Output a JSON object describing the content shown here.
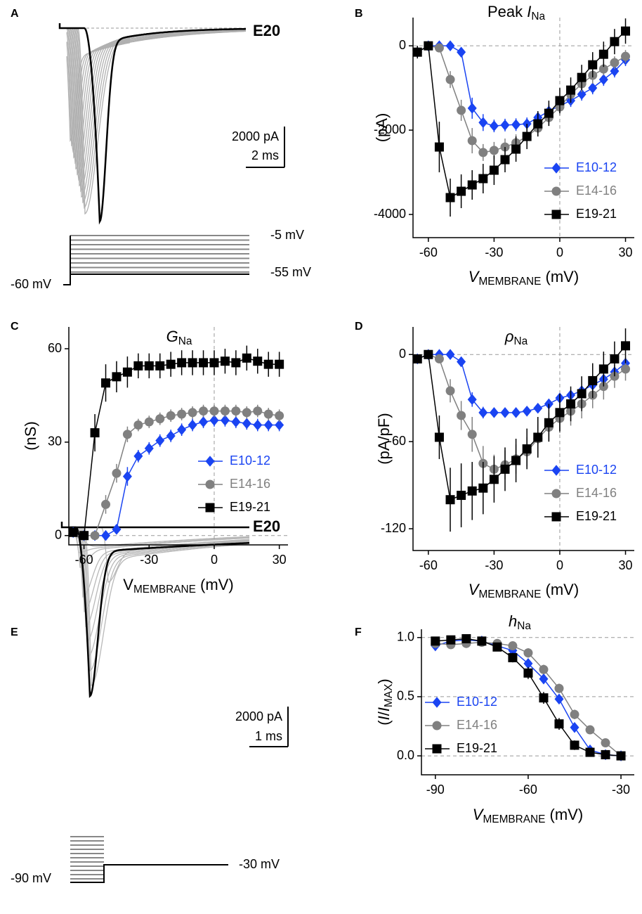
{
  "traces": [
    {
      "panel": "A",
      "label": "E20",
      "scale": [
        "2000 pA",
        "2 ms"
      ],
      "steps": [
        "-5 mV",
        "-55 mV",
        "-60 mV"
      ]
    },
    {
      "panel": "E",
      "label": "E20",
      "scale": [
        "2000 pA",
        "1 ms"
      ],
      "steps": [
        "-30 mV",
        "-90 mV"
      ]
    }
  ],
  "chart_data": [
    {
      "panel": "B",
      "type": "line",
      "title": [
        {
          "text": "Peak "
        },
        {
          "text": "I",
          "style": "italic"
        },
        {
          "text": "Na",
          "style": "sub"
        }
      ],
      "xlabel": [
        {
          "text": "V",
          "style": "italic"
        },
        {
          "text": "MEMBRANE",
          "style": "sub"
        },
        {
          "text": " (mV)"
        }
      ],
      "ylabel": [
        {
          "text": "(pA)"
        }
      ],
      "x": [
        -65,
        -60,
        -55,
        -50,
        -45,
        -40,
        -35,
        -30,
        -25,
        -20,
        -15,
        -10,
        -5,
        0,
        5,
        10,
        15,
        20,
        25,
        30
      ],
      "xlim": [
        -67,
        34
      ],
      "xticks": [
        -60,
        -30,
        0,
        30
      ],
      "ylim": [
        -4550,
        670
      ],
      "yticks": [
        0,
        -2000,
        -4000
      ],
      "zero_lines": true,
      "legend": "lower right",
      "series": [
        {
          "name": "E10-12",
          "color": "#1a44f2",
          "marker": "diamond",
          "values": [
            -150,
            0,
            0,
            0,
            -150,
            -1480,
            -1820,
            -1900,
            -1880,
            -1870,
            -1850,
            -1700,
            -1550,
            -1420,
            -1300,
            -1150,
            -1000,
            -800,
            -600,
            -330
          ],
          "errors": [
            100,
            50,
            50,
            50,
            80,
            250,
            200,
            150,
            150,
            150,
            150,
            150,
            150,
            150,
            150,
            150,
            150,
            150,
            150,
            150
          ]
        },
        {
          "name": "E14-16",
          "color": "#808080",
          "marker": "circle",
          "values": [
            -150,
            0,
            -50,
            -800,
            -1530,
            -2250,
            -2530,
            -2480,
            -2400,
            -2300,
            -2150,
            -1950,
            -1700,
            -1450,
            -1150,
            -900,
            -700,
            -550,
            -400,
            -250
          ],
          "errors": [
            100,
            50,
            80,
            200,
            250,
            300,
            200,
            200,
            200,
            200,
            200,
            200,
            200,
            200,
            200,
            200,
            200,
            150,
            150,
            150
          ]
        },
        {
          "name": "E19-21",
          "color": "#000000",
          "marker": "square",
          "values": [
            -150,
            0,
            -2400,
            -3600,
            -3450,
            -3300,
            -3150,
            -2950,
            -2700,
            -2450,
            -2150,
            -1850,
            -1600,
            -1300,
            -1050,
            -750,
            -450,
            -200,
            100,
            350
          ],
          "errors": [
            150,
            50,
            600,
            450,
            400,
            350,
            350,
            350,
            300,
            300,
            300,
            300,
            300,
            300,
            300,
            300,
            300,
            300,
            300,
            300
          ]
        }
      ]
    },
    {
      "panel": "C",
      "type": "line",
      "title": [
        {
          "text": "G",
          "style": "italic"
        },
        {
          "text": "Na",
          "style": "sub"
        }
      ],
      "xlabel": [
        {
          "text": "V"
        },
        {
          "text": "MEMBRANE",
          "style": "sub"
        },
        {
          "text": " (mV)"
        }
      ],
      "ylabel": [
        {
          "text": "(nS)"
        }
      ],
      "x": [
        -65,
        -60,
        -55,
        -50,
        -45,
        -40,
        -35,
        -30,
        -25,
        -20,
        -15,
        -10,
        -5,
        0,
        5,
        10,
        15,
        20,
        25,
        30
      ],
      "xlim": [
        -67,
        34
      ],
      "xticks": [
        -60,
        -30,
        0,
        30
      ],
      "ylim": [
        -3,
        67
      ],
      "yticks": [
        0,
        30,
        60
      ],
      "zero_lines": true,
      "legend": "lower right",
      "series": [
        {
          "name": "E10-12",
          "color": "#1a44f2",
          "marker": "diamond",
          "values": [
            1,
            0,
            0,
            0,
            2,
            19,
            25.5,
            28,
            30.5,
            32,
            34,
            35.5,
            36.5,
            37,
            37,
            36.5,
            36,
            35.5,
            35.5,
            35.5
          ],
          "errors": [
            1,
            0.5,
            0.5,
            0.5,
            1,
            3,
            2,
            2,
            2,
            2,
            2,
            2,
            2,
            2,
            2,
            2,
            2,
            2,
            2,
            2
          ]
        },
        {
          "name": "E14-16",
          "color": "#808080",
          "marker": "circle",
          "values": [
            1,
            0,
            0,
            10,
            20,
            32.5,
            35.5,
            36.5,
            37.5,
            38.5,
            39,
            39.5,
            40,
            40,
            40,
            40,
            39.5,
            40,
            39,
            38.5
          ],
          "errors": [
            1,
            0.5,
            0.5,
            3,
            3,
            2.5,
            2,
            2,
            2,
            2,
            2,
            2,
            2,
            2,
            2,
            2,
            2,
            2,
            2,
            2
          ]
        },
        {
          "name": "E19-21",
          "color": "#000000",
          "marker": "square",
          "values": [
            1,
            0,
            33,
            49,
            51,
            52.5,
            54.5,
            54.5,
            54.5,
            55,
            55.5,
            55.5,
            55.5,
            55.5,
            56,
            55.5,
            57,
            56,
            55,
            55
          ],
          "errors": [
            1,
            0.5,
            6,
            6,
            5,
            5,
            4,
            4,
            4,
            4,
            4,
            4,
            4,
            4,
            4,
            4,
            4,
            4,
            4,
            4
          ]
        }
      ]
    },
    {
      "panel": "D",
      "type": "line",
      "title": [
        {
          "text": "ρ",
          "style": "italic"
        },
        {
          "text": "Na",
          "style": "sub"
        }
      ],
      "xlabel": [
        {
          "text": "V",
          "style": "italic"
        },
        {
          "text": "MEMBRANE",
          "style": "sub"
        },
        {
          "text": " (mV)"
        }
      ],
      "ylabel": [
        {
          "text": "(pA/pF)"
        }
      ],
      "x": [
        -65,
        -60,
        -55,
        -50,
        -45,
        -40,
        -35,
        -30,
        -25,
        -20,
        -15,
        -10,
        -5,
        0,
        5,
        10,
        15,
        20,
        25,
        30
      ],
      "xlim": [
        -67,
        34
      ],
      "xticks": [
        -60,
        -30,
        0,
        30
      ],
      "ylim": [
        -135,
        19
      ],
      "yticks": [
        0,
        -60,
        -120
      ],
      "zero_lines": true,
      "legend": "lower right",
      "series": [
        {
          "name": "E10-12",
          "color": "#1a44f2",
          "marker": "diamond",
          "values": [
            -3,
            0,
            0,
            0,
            -5,
            -31,
            -40,
            -40,
            -40,
            -40,
            -39,
            -37,
            -34,
            -30,
            -28,
            -25,
            -21,
            -17,
            -12,
            -6
          ],
          "errors": [
            2,
            1,
            1,
            1,
            2,
            5,
            4,
            3,
            3,
            3,
            3,
            3,
            3,
            3,
            3,
            3,
            3,
            3,
            3,
            3
          ]
        },
        {
          "name": "E14-16",
          "color": "#808080",
          "marker": "circle",
          "values": [
            -3,
            0,
            -3,
            -25,
            -42,
            -55,
            -75,
            -79,
            -76,
            -72,
            -67,
            -58,
            -50,
            -44,
            -39,
            -34,
            -28,
            -22,
            -15,
            -10
          ],
          "errors": [
            2,
            1,
            2,
            8,
            10,
            12,
            12,
            10,
            10,
            10,
            10,
            10,
            10,
            10,
            10,
            10,
            9,
            9,
            8,
            8
          ]
        },
        {
          "name": "E19-21",
          "color": "#000000",
          "marker": "square",
          "values": [
            -3,
            0,
            -57,
            -100,
            -97,
            -94,
            -92,
            -86,
            -79,
            -73,
            -65,
            -57,
            -47,
            -40,
            -34,
            -27,
            -18,
            -10,
            -3,
            6
          ],
          "errors": [
            2,
            1,
            15,
            22,
            22,
            20,
            18,
            16,
            15,
            15,
            14,
            14,
            13,
            13,
            12,
            12,
            12,
            12,
            12,
            12
          ]
        }
      ]
    },
    {
      "panel": "F",
      "type": "line",
      "title": [
        {
          "text": "h",
          "style": "italic"
        },
        {
          "text": "Na",
          "style": "sub"
        }
      ],
      "xlabel": [
        {
          "text": "V",
          "style": "italic"
        },
        {
          "text": "MEMBRANE",
          "style": "sub"
        },
        {
          "text": " (mV)"
        }
      ],
      "ylabel": [
        {
          "text": "("
        },
        {
          "text": "I",
          "style": "italic"
        },
        {
          "text": "/"
        },
        {
          "text": "I",
          "style": "italic"
        },
        {
          "text": "MAX",
          "style": "sub"
        },
        {
          "text": ")"
        }
      ],
      "x": [
        -90,
        -85,
        -80,
        -75,
        -70,
        -65,
        -60,
        -55,
        -50,
        -45,
        -40,
        -35,
        -30
      ],
      "xlim": [
        -94.5,
        -25.7
      ],
      "xticks": [
        -90,
        -60,
        -30
      ],
      "ylim": [
        -0.16,
        1.07
      ],
      "yticks": [
        {
          "value": 0,
          "label": "0.0"
        },
        0.5,
        {
          "value": 1,
          "label": "1.0"
        }
      ],
      "grid": true,
      "legend": "lower left",
      "series": [
        {
          "name": "E10-12",
          "color": "#1a44f2",
          "marker": "diamond",
          "values": [
            0.93,
            0.97,
            0.98,
            0.97,
            0.93,
            0.89,
            0.78,
            0.65,
            0.48,
            0.24,
            0.05,
            0.01,
            0
          ],
          "errors": [
            0.02,
            0.02,
            0.02,
            0.02,
            0.02,
            0.03,
            0.04,
            0.04,
            0.04,
            0.04,
            0.02,
            0.01,
            0.01
          ]
        },
        {
          "name": "E14-16",
          "color": "#808080",
          "marker": "circle",
          "values": [
            0.95,
            0.94,
            0.95,
            0.96,
            0.95,
            0.93,
            0.87,
            0.73,
            0.57,
            0.35,
            0.22,
            0.11,
            0
          ],
          "errors": [
            0.02,
            0.02,
            0.02,
            0.02,
            0.02,
            0.03,
            0.04,
            0.04,
            0.04,
            0.04,
            0.03,
            0.02,
            0.01
          ]
        },
        {
          "name": "E19-21",
          "color": "#000000",
          "marker": "square",
          "values": [
            0.97,
            0.98,
            0.99,
            0.97,
            0.92,
            0.83,
            0.7,
            0.49,
            0.27,
            0.09,
            0.03,
            0.01,
            0
          ],
          "errors": [
            0.02,
            0.02,
            0.02,
            0.02,
            0.03,
            0.04,
            0.05,
            0.05,
            0.05,
            0.04,
            0.02,
            0.01,
            0.01
          ]
        }
      ]
    }
  ]
}
